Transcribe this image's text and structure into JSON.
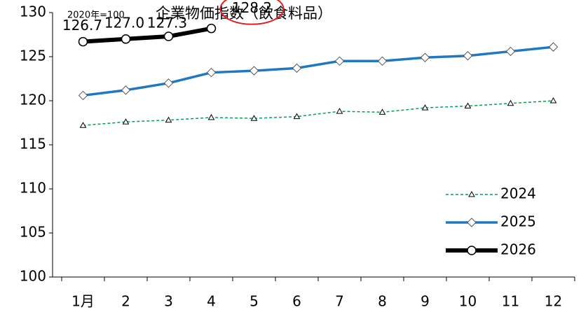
{
  "chart_data": {
    "type": "line",
    "title": "企業物価指数（飲食料品）",
    "annotation": "2020年=100",
    "categories": [
      "1月",
      "2",
      "3",
      "4",
      "5",
      "6",
      "7",
      "8",
      "9",
      "10",
      "11",
      "12"
    ],
    "series": [
      {
        "name": "2024",
        "color": "#00a050",
        "marker": "triangle",
        "dash": true,
        "values": [
          117.2,
          117.6,
          117.8,
          118.1,
          118.0,
          118.2,
          118.8,
          118.7,
          119.2,
          119.4,
          119.7,
          120.0
        ]
      },
      {
        "name": "2025",
        "color": "#1f78c1",
        "marker": "diamond",
        "values": [
          120.6,
          121.2,
          122.0,
          123.2,
          123.4,
          123.7,
          124.5,
          124.5,
          124.9,
          125.1,
          125.6,
          126.1
        ]
      },
      {
        "name": "2026",
        "color": "#000000",
        "marker": "circle",
        "values": [
          126.7,
          127.0,
          127.3,
          128.2,
          null,
          null,
          null,
          null,
          null,
          null,
          null,
          null
        ],
        "value_labels": [
          "126.7",
          "127.0",
          "127.3",
          "128.2",
          null,
          null,
          null,
          null,
          null,
          null,
          null,
          null
        ]
      }
    ],
    "ylim": [
      100,
      130
    ],
    "yticks": [
      100,
      105,
      110,
      115,
      120,
      125,
      130
    ],
    "grid": false,
    "legend": "lower right"
  }
}
